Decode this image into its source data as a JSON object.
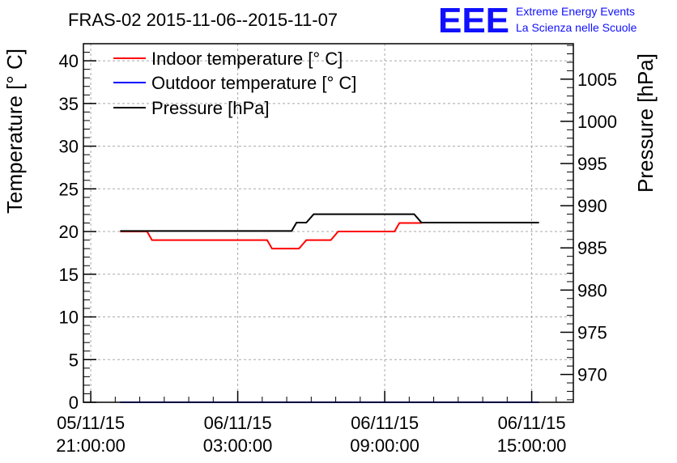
{
  "chart_data": {
    "type": "line",
    "title": "FRAS-02 2015-11-06--2015-11-07",
    "logo": {
      "mark": "EEE",
      "line1": "Extreme Energy Events",
      "line2": "La Scienza nelle Scuole"
    },
    "xlabel": "",
    "ylabel_left": "Temperature [° C]",
    "ylabel_right": "Pressure [hPa]",
    "x_unit": "hours since 05/11/15 21:00:00",
    "xlim": [
      -0.3,
      19.7
    ],
    "ylim_left": [
      0,
      42
    ],
    "ylim_right": [
      966.7,
      1009.2
    ],
    "grid": true,
    "legend_position": "top-left",
    "x_ticks": [
      {
        "value": 0,
        "line1": "05/11/15",
        "line2": "21:00:00"
      },
      {
        "value": 6,
        "line1": "06/11/15",
        "line2": "03:00:00"
      },
      {
        "value": 12,
        "line1": "06/11/15",
        "line2": "09:00:00"
      },
      {
        "value": 18,
        "line1": "06/11/15",
        "line2": "15:00:00"
      }
    ],
    "left_ticks": [
      {
        "value": 0,
        "label": "0"
      },
      {
        "value": 5,
        "label": "5"
      },
      {
        "value": 10,
        "label": "10"
      },
      {
        "value": 15,
        "label": "15"
      },
      {
        "value": 20,
        "label": "20"
      },
      {
        "value": 25,
        "label": "25"
      },
      {
        "value": 30,
        "label": "30"
      },
      {
        "value": 35,
        "label": "35"
      },
      {
        "value": 40,
        "label": "40"
      }
    ],
    "right_ticks": [
      {
        "value": 970,
        "label": "970"
      },
      {
        "value": 975,
        "label": "975"
      },
      {
        "value": 980,
        "label": "980"
      },
      {
        "value": 985,
        "label": "985"
      },
      {
        "value": 990,
        "label": "990"
      },
      {
        "value": 995,
        "label": "995"
      },
      {
        "value": 1000,
        "label": "1000"
      },
      {
        "value": 1005,
        "label": "1005"
      }
    ],
    "series": [
      {
        "name": "Indoor temperature [° C]",
        "color": "#ff0000",
        "axis": "left",
        "points": [
          [
            1.2,
            20
          ],
          [
            2.3,
            20
          ],
          [
            2.5,
            19
          ],
          [
            7.2,
            19
          ],
          [
            7.4,
            18
          ],
          [
            8.5,
            18
          ],
          [
            8.8,
            19
          ],
          [
            9.8,
            19
          ],
          [
            10.1,
            20
          ],
          [
            12.4,
            20
          ],
          [
            12.6,
            21
          ],
          [
            13.5,
            21
          ]
        ]
      },
      {
        "name": "Outdoor temperature [° C]",
        "color": "#0000ff",
        "axis": "left",
        "points": [
          [
            1.2,
            0
          ],
          [
            18.3,
            0
          ]
        ]
      },
      {
        "name": "Pressure [hPa]",
        "color": "#000000",
        "axis": "right",
        "points": [
          [
            1.2,
            987
          ],
          [
            8.2,
            987
          ],
          [
            8.4,
            988
          ],
          [
            8.8,
            988
          ],
          [
            9.1,
            989
          ],
          [
            13.2,
            989
          ],
          [
            13.5,
            988
          ],
          [
            18.3,
            988
          ]
        ]
      }
    ]
  }
}
